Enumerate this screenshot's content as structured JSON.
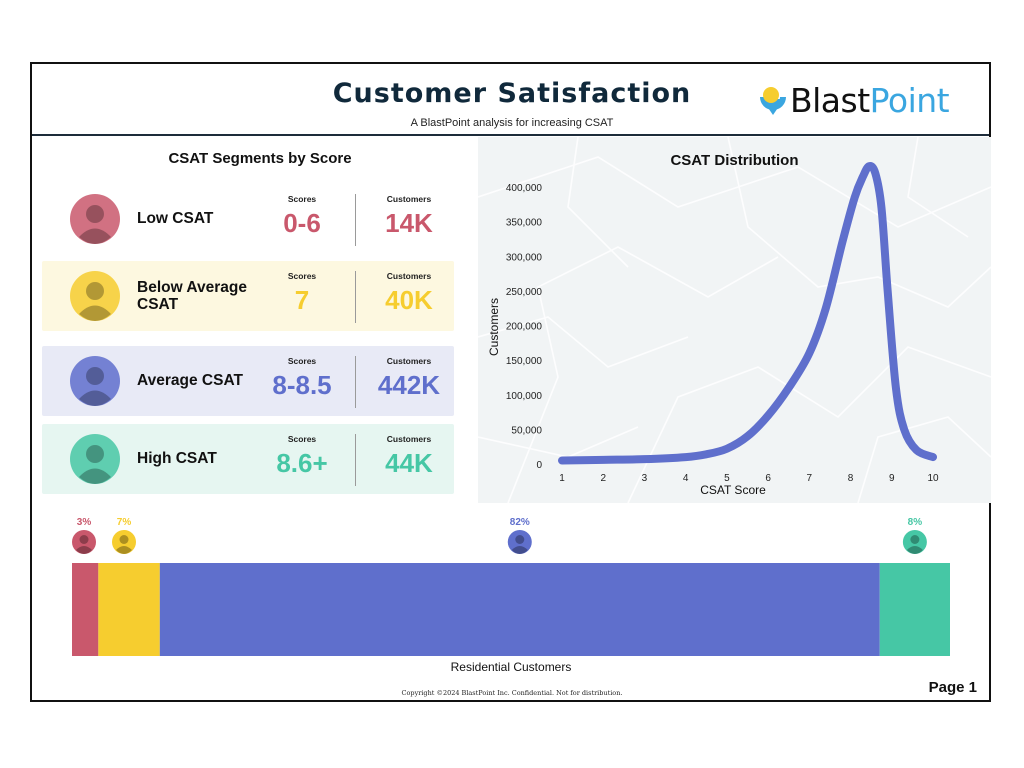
{
  "header": {
    "title": "Customer Satisfaction",
    "subtitle": "A BlastPoint analysis for increasing CSAT",
    "logo": {
      "text_main": "Blast",
      "text_accent": "Point",
      "icon": "blastpoint-logo-icon"
    }
  },
  "segments": {
    "title": "CSAT Segments by Score",
    "scores_label": "Scores",
    "customers_label": "Customers",
    "items": [
      {
        "name_line1": "Low CSAT",
        "name_line2": "",
        "scores": "0-6",
        "customers": "14K",
        "color": "#c9586c",
        "bg": "#ffffff"
      },
      {
        "name_line1": "Below Average",
        "name_line2": "CSAT",
        "scores": "7",
        "customers": "40K",
        "color": "#f6cd2f",
        "bg": "#fdf8e0"
      },
      {
        "name_line1": "Average CSAT",
        "name_line2": "",
        "scores": "8-8.5",
        "customers": "442K",
        "color": "#5f6fcc",
        "bg": "#e8eaf6"
      },
      {
        "name_line1": "High CSAT",
        "name_line2": "",
        "scores": "8.6+",
        "customers": "44K",
        "color": "#46c7a5",
        "bg": "#e6f6f1"
      }
    ]
  },
  "chart_data": [
    {
      "type": "line",
      "title": "CSAT Distribution",
      "xlabel": "CSAT Score",
      "ylabel": "Customers",
      "xlim": [
        1,
        10
      ],
      "ylim": [
        0,
        400000
      ],
      "x_ticks": [
        1,
        2,
        3,
        4,
        5,
        6,
        7,
        8,
        9,
        10
      ],
      "y_ticks": [
        0,
        50000,
        100000,
        150000,
        200000,
        250000,
        300000,
        350000,
        400000
      ],
      "y_tick_labels": [
        "0",
        "50,000",
        "100,000",
        "150,000",
        "200,000",
        "250,000",
        "300,000",
        "350,000",
        "400,000"
      ],
      "grid": false,
      "line_color": "#5f6fcc",
      "x": [
        1,
        2,
        3,
        4,
        4.5,
        5,
        5.5,
        6,
        6.5,
        7,
        7.4,
        7.8,
        8.1,
        8.3,
        8.45,
        8.6,
        8.75,
        8.9,
        9.1,
        9.3,
        9.6,
        10
      ],
      "y": [
        5000,
        6000,
        7000,
        10000,
        14000,
        22000,
        40000,
        70000,
        110000,
        160000,
        225000,
        320000,
        385000,
        415000,
        430000,
        420000,
        370000,
        250000,
        110000,
        50000,
        20000,
        10000
      ]
    },
    {
      "type": "bar",
      "orientation": "horizontal-stacked",
      "xlabel": "Residential Customers",
      "categories": [
        "Low CSAT",
        "Below Average CSAT",
        "Average CSAT",
        "High CSAT"
      ],
      "values": [
        3,
        7,
        82,
        8
      ],
      "value_labels": [
        "3%",
        "7%",
        "82%",
        "8%"
      ],
      "colors": [
        "#c9586c",
        "#f6cd2f",
        "#5f6fcc",
        "#46c7a5"
      ]
    }
  ],
  "footer": {
    "copyright": "Copyright ©2024 BlastPoint Inc.  Confidential.  Not for distribution.",
    "page": "Page 1"
  }
}
